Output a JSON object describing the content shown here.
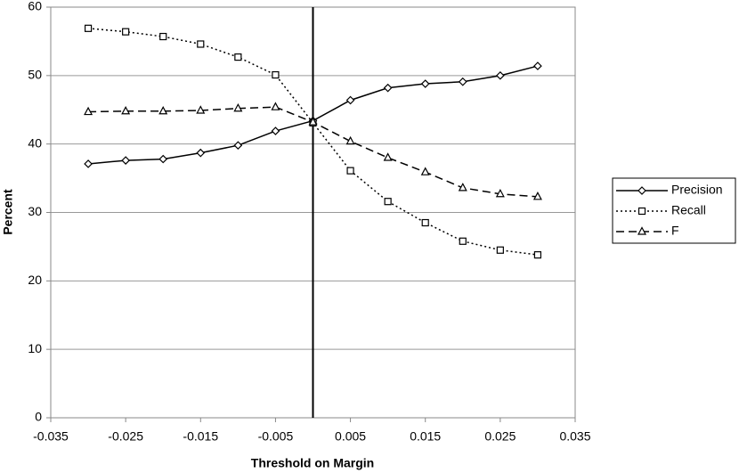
{
  "chart_data": {
    "type": "line",
    "x_label": "Threshold on Margin",
    "y_label": "Percent",
    "x": [
      -0.03,
      -0.025,
      -0.02,
      -0.015,
      -0.01,
      -0.005,
      0,
      0.005,
      0.01,
      0.015,
      0.02,
      0.025,
      0.03
    ],
    "series": [
      {
        "name": "Precision",
        "color": "#000000",
        "dash": "solid",
        "marker": "diamond",
        "values": [
          37.1,
          37.6,
          37.8,
          38.7,
          39.8,
          41.9,
          43.4,
          46.4,
          48.2,
          48.8,
          49.1,
          50.0,
          51.4
        ]
      },
      {
        "name": "Recall",
        "color": "#000000",
        "dash": "dotted",
        "marker": "square",
        "values": [
          56.9,
          56.4,
          55.7,
          54.6,
          52.7,
          50.1,
          43.1,
          36.1,
          31.6,
          28.5,
          25.8,
          24.5,
          23.8
        ]
      },
      {
        "name": "F",
        "color": "#000000",
        "dash": "dashed",
        "marker": "triangle",
        "values": [
          44.7,
          44.8,
          44.8,
          44.9,
          45.2,
          45.4,
          43.2,
          40.4,
          38.0,
          35.9,
          33.6,
          32.7,
          32.3
        ]
      }
    ],
    "xlim": [
      -0.035,
      0.035
    ],
    "xticks": [
      -0.035,
      -0.025,
      -0.015,
      -0.005,
      0.005,
      0.015,
      0.025,
      0.035
    ],
    "ylim": [
      0,
      60
    ],
    "yticks": [
      0,
      10,
      20,
      30,
      40,
      50,
      60
    ],
    "vline": 0,
    "grid": true,
    "legend": "right"
  }
}
